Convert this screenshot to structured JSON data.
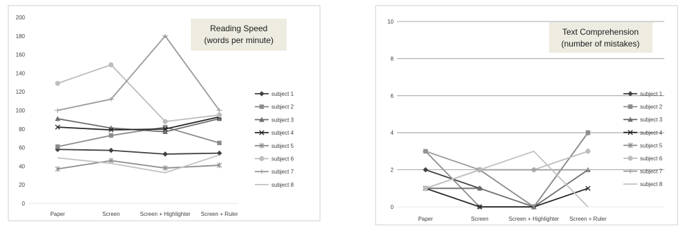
{
  "chart_data": [
    {
      "type": "line",
      "title_lines": [
        "Reading Speed",
        "(words per minute)"
      ],
      "categories": [
        "Paper",
        "Screen",
        "Screen + Highlighter",
        "Screen + Ruler"
      ],
      "ylim": [
        0,
        200
      ],
      "yticks": [
        0,
        20,
        40,
        60,
        80,
        100,
        120,
        140,
        160,
        180,
        200
      ],
      "grid": false,
      "legend": "right",
      "series": [
        {
          "name": "subject 1",
          "values": [
            58,
            57,
            53,
            54
          ],
          "color": "#404040",
          "marker": "diamond"
        },
        {
          "name": "subject 2",
          "values": [
            61,
            73,
            82,
            65
          ],
          "color": "#8c8c8c",
          "marker": "square"
        },
        {
          "name": "subject 3",
          "values": [
            91,
            81,
            77,
            91
          ],
          "color": "#6e6e6e",
          "marker": "triangle"
        },
        {
          "name": "subject 4",
          "values": [
            82,
            79,
            80,
            93
          ],
          "color": "#262626",
          "marker": "x"
        },
        {
          "name": "subject 5",
          "values": [
            37,
            46,
            38,
            41
          ],
          "color": "#8c8c8c",
          "marker": "star"
        },
        {
          "name": "subject 6",
          "values": [
            129,
            149,
            88,
            95
          ],
          "color": "#bdbdbd",
          "marker": "circle"
        },
        {
          "name": "subject 7",
          "values": [
            100,
            112,
            180,
            100
          ],
          "color": "#9a9a9a",
          "marker": "plus"
        },
        {
          "name": "subject 8",
          "values": [
            49,
            43,
            33,
            52
          ],
          "color": "#c2c2c2",
          "marker": "none"
        }
      ]
    },
    {
      "type": "line",
      "title_lines": [
        "Text Comprehension",
        "(number of mistakes)"
      ],
      "categories": [
        "Paper",
        "Screen",
        "Screen + Highlighter",
        "Screen + Ruler"
      ],
      "ylim": [
        0,
        10
      ],
      "yticks": [
        0,
        2,
        4,
        6,
        8,
        10
      ],
      "grid": true,
      "legend": "right",
      "series": [
        {
          "name": "subject 1",
          "values": [
            2,
            1,
            null,
            null
          ],
          "color": "#404040",
          "marker": "diamond"
        },
        {
          "name": "subject 2",
          "values": [
            3,
            0,
            0,
            4
          ],
          "color": "#8c8c8c",
          "marker": "square"
        },
        {
          "name": "subject 3",
          "values": [
            1,
            1,
            0,
            2
          ],
          "color": "#6e6e6e",
          "marker": "triangle"
        },
        {
          "name": "subject 4",
          "values": [
            1,
            0,
            0,
            1
          ],
          "color": "#262626",
          "marker": "x"
        },
        {
          "name": "subject 5",
          "values": [
            1,
            2,
            0,
            4
          ],
          "color": "#8c8c8c",
          "marker": "star"
        },
        {
          "name": "subject 6",
          "values": [
            1,
            2,
            2,
            3
          ],
          "color": "#bdbdbd",
          "marker": "circle"
        },
        {
          "name": "subject 7",
          "values": [
            3,
            2,
            2,
            2
          ],
          "color": "#9a9a9a",
          "marker": "plus"
        },
        {
          "name": "subject 8",
          "values": [
            1,
            2,
            3,
            0
          ],
          "color": "#c2c2c2",
          "marker": "none"
        }
      ]
    }
  ]
}
